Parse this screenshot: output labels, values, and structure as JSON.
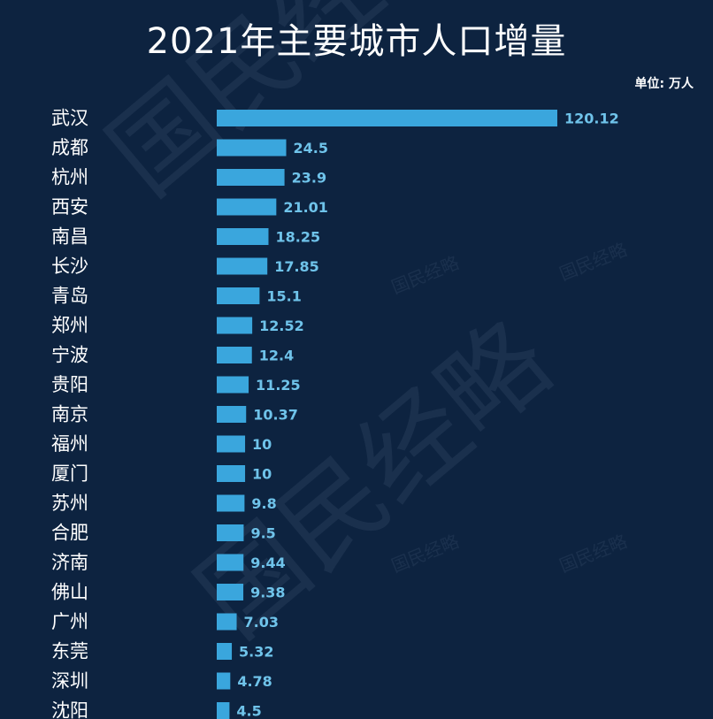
{
  "title": "2021年主要城市人口增量",
  "unit_label": "单位: 万人",
  "watermark_text": "国民经略",
  "colors": {
    "background": "#0d2340",
    "bar": "#3aa6dd",
    "value_label": "#6fc3ea"
  },
  "chart_data": {
    "type": "bar",
    "orientation": "horizontal",
    "title": "2021年主要城市人口增量",
    "unit": "单位: 万人",
    "categories": [
      "武汉",
      "成都",
      "杭州",
      "西安",
      "南昌",
      "长沙",
      "青岛",
      "郑州",
      "宁波",
      "贵阳",
      "南京",
      "福州",
      "厦门",
      "苏州",
      "合肥",
      "济南",
      "佛山",
      "广州",
      "东莞",
      "深圳",
      "沈阳"
    ],
    "values": [
      120.12,
      24.5,
      23.9,
      21.01,
      18.25,
      17.85,
      15.1,
      12.52,
      12.4,
      11.25,
      10.37,
      10,
      10,
      9.8,
      9.5,
      9.44,
      9.38,
      7.03,
      5.32,
      4.78,
      4.5
    ],
    "value_labels": [
      "120.12",
      "24.5",
      "23.9",
      "21.01",
      "18.25",
      "17.85",
      "15.1",
      "12.52",
      "12.4",
      "11.25",
      "10.37",
      "10",
      "10",
      "9.8",
      "9.5",
      "9.44",
      "9.38",
      "7.03",
      "5.32",
      "4.78",
      "4.5"
    ],
    "xlim": [
      0,
      120.12
    ],
    "grid": false,
    "legend": "none"
  }
}
